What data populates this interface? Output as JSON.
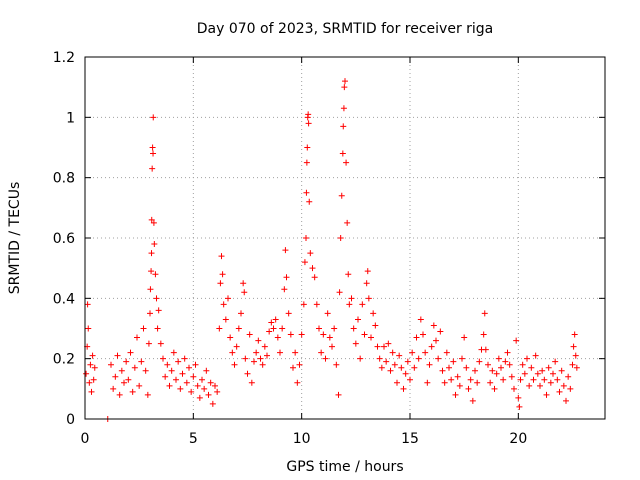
{
  "chart_data": {
    "type": "scatter",
    "title": "Day 070 of 2023, SRMTID for receiver riga",
    "xlabel": "GPS time / hours",
    "ylabel": "SRMTID / TECUs",
    "xlim": [
      0,
      24
    ],
    "ylim": [
      0,
      1.2
    ],
    "x_ticks": [
      0,
      5,
      10,
      15,
      20
    ],
    "x_tick_labels": [
      "0",
      "5",
      "10",
      "15",
      "20"
    ],
    "y_ticks": [
      0,
      0.2,
      0.4,
      0.6,
      0.8,
      1,
      1.2
    ],
    "y_tick_labels": [
      "0",
      "0.2",
      "0.4",
      "0.6",
      "0.8",
      "1",
      "1.2"
    ],
    "grid": true,
    "marker": "plus",
    "color": "#ff0000",
    "series": [
      {
        "name": "SRMTID",
        "points": [
          [
            0.05,
            0.15
          ],
          [
            0.1,
            0.24
          ],
          [
            0.12,
            0.38
          ],
          [
            0.15,
            0.3
          ],
          [
            0.2,
            0.12
          ],
          [
            0.25,
            0.18
          ],
          [
            0.3,
            0.09
          ],
          [
            0.35,
            0.21
          ],
          [
            0.4,
            0.13
          ],
          [
            0.45,
            0.17
          ],
          [
            1.05,
            0.0
          ],
          [
            1.2,
            0.18
          ],
          [
            1.3,
            0.1
          ],
          [
            1.4,
            0.14
          ],
          [
            1.5,
            0.21
          ],
          [
            1.6,
            0.08
          ],
          [
            1.7,
            0.16
          ],
          [
            1.8,
            0.12
          ],
          [
            1.9,
            0.19
          ],
          [
            2.0,
            0.13
          ],
          [
            2.1,
            0.22
          ],
          [
            2.2,
            0.09
          ],
          [
            2.3,
            0.17
          ],
          [
            2.4,
            0.27
          ],
          [
            2.5,
            0.11
          ],
          [
            2.6,
            0.19
          ],
          [
            2.7,
            0.3
          ],
          [
            2.8,
            0.16
          ],
          [
            2.9,
            0.08
          ],
          [
            2.95,
            0.25
          ],
          [
            3.0,
            0.35
          ],
          [
            3.02,
            0.43
          ],
          [
            3.05,
            0.49
          ],
          [
            3.07,
            0.55
          ],
          [
            3.08,
            0.66
          ],
          [
            3.1,
            0.83
          ],
          [
            3.12,
            0.9
          ],
          [
            3.14,
            0.88
          ],
          [
            3.15,
            1.0
          ],
          [
            3.18,
            0.65
          ],
          [
            3.2,
            0.58
          ],
          [
            3.25,
            0.48
          ],
          [
            3.3,
            0.4
          ],
          [
            3.35,
            0.3
          ],
          [
            3.4,
            0.36
          ],
          [
            3.5,
            0.25
          ],
          [
            3.6,
            0.2
          ],
          [
            3.7,
            0.14
          ],
          [
            3.8,
            0.18
          ],
          [
            3.9,
            0.11
          ],
          [
            4.0,
            0.16
          ],
          [
            4.1,
            0.22
          ],
          [
            4.2,
            0.13
          ],
          [
            4.3,
            0.19
          ],
          [
            4.4,
            0.1
          ],
          [
            4.5,
            0.15
          ],
          [
            4.6,
            0.2
          ],
          [
            4.7,
            0.12
          ],
          [
            4.8,
            0.17
          ],
          [
            4.9,
            0.09
          ],
          [
            5.0,
            0.14
          ],
          [
            5.1,
            0.18
          ],
          [
            5.2,
            0.11
          ],
          [
            5.3,
            0.07
          ],
          [
            5.4,
            0.13
          ],
          [
            5.5,
            0.1
          ],
          [
            5.6,
            0.16
          ],
          [
            5.7,
            0.08
          ],
          [
            5.8,
            0.12
          ],
          [
            5.9,
            0.05
          ],
          [
            6.0,
            0.11
          ],
          [
            6.1,
            0.09
          ],
          [
            6.2,
            0.3
          ],
          [
            6.25,
            0.45
          ],
          [
            6.3,
            0.54
          ],
          [
            6.35,
            0.48
          ],
          [
            6.4,
            0.38
          ],
          [
            6.5,
            0.33
          ],
          [
            6.6,
            0.4
          ],
          [
            6.7,
            0.27
          ],
          [
            6.8,
            0.22
          ],
          [
            6.9,
            0.18
          ],
          [
            7.0,
            0.24
          ],
          [
            7.1,
            0.3
          ],
          [
            7.2,
            0.35
          ],
          [
            7.3,
            0.45
          ],
          [
            7.35,
            0.42
          ],
          [
            7.4,
            0.2
          ],
          [
            7.5,
            0.15
          ],
          [
            7.6,
            0.28
          ],
          [
            7.7,
            0.12
          ],
          [
            7.8,
            0.19
          ],
          [
            7.9,
            0.22
          ],
          [
            8.0,
            0.26
          ],
          [
            8.1,
            0.2
          ],
          [
            8.2,
            0.18
          ],
          [
            8.3,
            0.24
          ],
          [
            8.4,
            0.21
          ],
          [
            8.5,
            0.29
          ],
          [
            8.6,
            0.32
          ],
          [
            8.7,
            0.3
          ],
          [
            8.8,
            0.33
          ],
          [
            8.9,
            0.27
          ],
          [
            9.0,
            0.22
          ],
          [
            9.1,
            0.3
          ],
          [
            9.2,
            0.43
          ],
          [
            9.25,
            0.56
          ],
          [
            9.3,
            0.47
          ],
          [
            9.4,
            0.35
          ],
          [
            9.5,
            0.28
          ],
          [
            9.6,
            0.17
          ],
          [
            9.7,
            0.22
          ],
          [
            9.8,
            0.12
          ],
          [
            9.9,
            0.18
          ],
          [
            10.0,
            0.28
          ],
          [
            10.1,
            0.38
          ],
          [
            10.15,
            0.52
          ],
          [
            10.2,
            0.6
          ],
          [
            10.22,
            0.75
          ],
          [
            10.24,
            0.85
          ],
          [
            10.26,
            0.9
          ],
          [
            10.28,
            1.0
          ],
          [
            10.3,
            1.01
          ],
          [
            10.32,
            0.98
          ],
          [
            10.35,
            0.72
          ],
          [
            10.4,
            0.55
          ],
          [
            10.5,
            0.5
          ],
          [
            10.6,
            0.47
          ],
          [
            10.7,
            0.38
          ],
          [
            10.8,
            0.3
          ],
          [
            10.9,
            0.22
          ],
          [
            11.0,
            0.28
          ],
          [
            11.1,
            0.2
          ],
          [
            11.2,
            0.35
          ],
          [
            11.3,
            0.27
          ],
          [
            11.4,
            0.24
          ],
          [
            11.5,
            0.3
          ],
          [
            11.6,
            0.18
          ],
          [
            11.7,
            0.08
          ],
          [
            11.75,
            0.42
          ],
          [
            11.8,
            0.6
          ],
          [
            11.85,
            0.74
          ],
          [
            11.9,
            0.88
          ],
          [
            11.92,
            0.97
          ],
          [
            11.95,
            1.03
          ],
          [
            11.97,
            1.1
          ],
          [
            12.0,
            1.12
          ],
          [
            12.05,
            0.85
          ],
          [
            12.1,
            0.65
          ],
          [
            12.15,
            0.48
          ],
          [
            12.2,
            0.38
          ],
          [
            12.3,
            0.4
          ],
          [
            12.4,
            0.3
          ],
          [
            12.5,
            0.25
          ],
          [
            12.6,
            0.33
          ],
          [
            12.7,
            0.2
          ],
          [
            12.8,
            0.38
          ],
          [
            12.9,
            0.28
          ],
          [
            13.0,
            0.45
          ],
          [
            13.05,
            0.49
          ],
          [
            13.1,
            0.4
          ],
          [
            13.2,
            0.27
          ],
          [
            13.3,
            0.35
          ],
          [
            13.4,
            0.31
          ],
          [
            13.5,
            0.24
          ],
          [
            13.6,
            0.2
          ],
          [
            13.7,
            0.17
          ],
          [
            13.8,
            0.24
          ],
          [
            13.9,
            0.19
          ],
          [
            14.0,
            0.25
          ],
          [
            14.1,
            0.16
          ],
          [
            14.2,
            0.22
          ],
          [
            14.3,
            0.18
          ],
          [
            14.4,
            0.12
          ],
          [
            14.5,
            0.21
          ],
          [
            14.6,
            0.17
          ],
          [
            14.7,
            0.1
          ],
          [
            14.8,
            0.15
          ],
          [
            14.9,
            0.19
          ],
          [
            15.0,
            0.13
          ],
          [
            15.1,
            0.22
          ],
          [
            15.2,
            0.17
          ],
          [
            15.3,
            0.27
          ],
          [
            15.4,
            0.2
          ],
          [
            15.5,
            0.33
          ],
          [
            15.6,
            0.28
          ],
          [
            15.7,
            0.22
          ],
          [
            15.8,
            0.12
          ],
          [
            15.9,
            0.18
          ],
          [
            16.0,
            0.24
          ],
          [
            16.1,
            0.31
          ],
          [
            16.2,
            0.26
          ],
          [
            16.3,
            0.2
          ],
          [
            16.4,
            0.29
          ],
          [
            16.5,
            0.16
          ],
          [
            16.6,
            0.12
          ],
          [
            16.7,
            0.22
          ],
          [
            16.8,
            0.17
          ],
          [
            16.9,
            0.13
          ],
          [
            17.0,
            0.19
          ],
          [
            17.1,
            0.08
          ],
          [
            17.2,
            0.14
          ],
          [
            17.3,
            0.11
          ],
          [
            17.4,
            0.2
          ],
          [
            17.5,
            0.27
          ],
          [
            17.6,
            0.17
          ],
          [
            17.7,
            0.1
          ],
          [
            17.8,
            0.13
          ],
          [
            17.9,
            0.06
          ],
          [
            18.0,
            0.16
          ],
          [
            18.1,
            0.12
          ],
          [
            18.2,
            0.19
          ],
          [
            18.3,
            0.23
          ],
          [
            18.4,
            0.28
          ],
          [
            18.45,
            0.35
          ],
          [
            18.5,
            0.23
          ],
          [
            18.6,
            0.18
          ],
          [
            18.7,
            0.12
          ],
          [
            18.8,
            0.16
          ],
          [
            18.9,
            0.1
          ],
          [
            19.0,
            0.15
          ],
          [
            19.1,
            0.2
          ],
          [
            19.2,
            0.17
          ],
          [
            19.3,
            0.13
          ],
          [
            19.4,
            0.19
          ],
          [
            19.5,
            0.22
          ],
          [
            19.6,
            0.18
          ],
          [
            19.7,
            0.14
          ],
          [
            19.8,
            0.1
          ],
          [
            19.9,
            0.26
          ],
          [
            20.0,
            0.07
          ],
          [
            20.05,
            0.04
          ],
          [
            20.1,
            0.13
          ],
          [
            20.2,
            0.18
          ],
          [
            20.3,
            0.15
          ],
          [
            20.4,
            0.2
          ],
          [
            20.5,
            0.11
          ],
          [
            20.6,
            0.17
          ],
          [
            20.7,
            0.13
          ],
          [
            20.8,
            0.21
          ],
          [
            20.9,
            0.15
          ],
          [
            21.0,
            0.11
          ],
          [
            21.1,
            0.16
          ],
          [
            21.2,
            0.13
          ],
          [
            21.3,
            0.08
          ],
          [
            21.4,
            0.17
          ],
          [
            21.5,
            0.12
          ],
          [
            21.6,
            0.15
          ],
          [
            21.7,
            0.19
          ],
          [
            21.8,
            0.13
          ],
          [
            21.9,
            0.09
          ],
          [
            22.0,
            0.16
          ],
          [
            22.1,
            0.11
          ],
          [
            22.2,
            0.06
          ],
          [
            22.3,
            0.14
          ],
          [
            22.4,
            0.1
          ],
          [
            22.5,
            0.18
          ],
          [
            22.55,
            0.24
          ],
          [
            22.6,
            0.28
          ],
          [
            22.65,
            0.21
          ],
          [
            22.7,
            0.17
          ]
        ]
      }
    ]
  }
}
